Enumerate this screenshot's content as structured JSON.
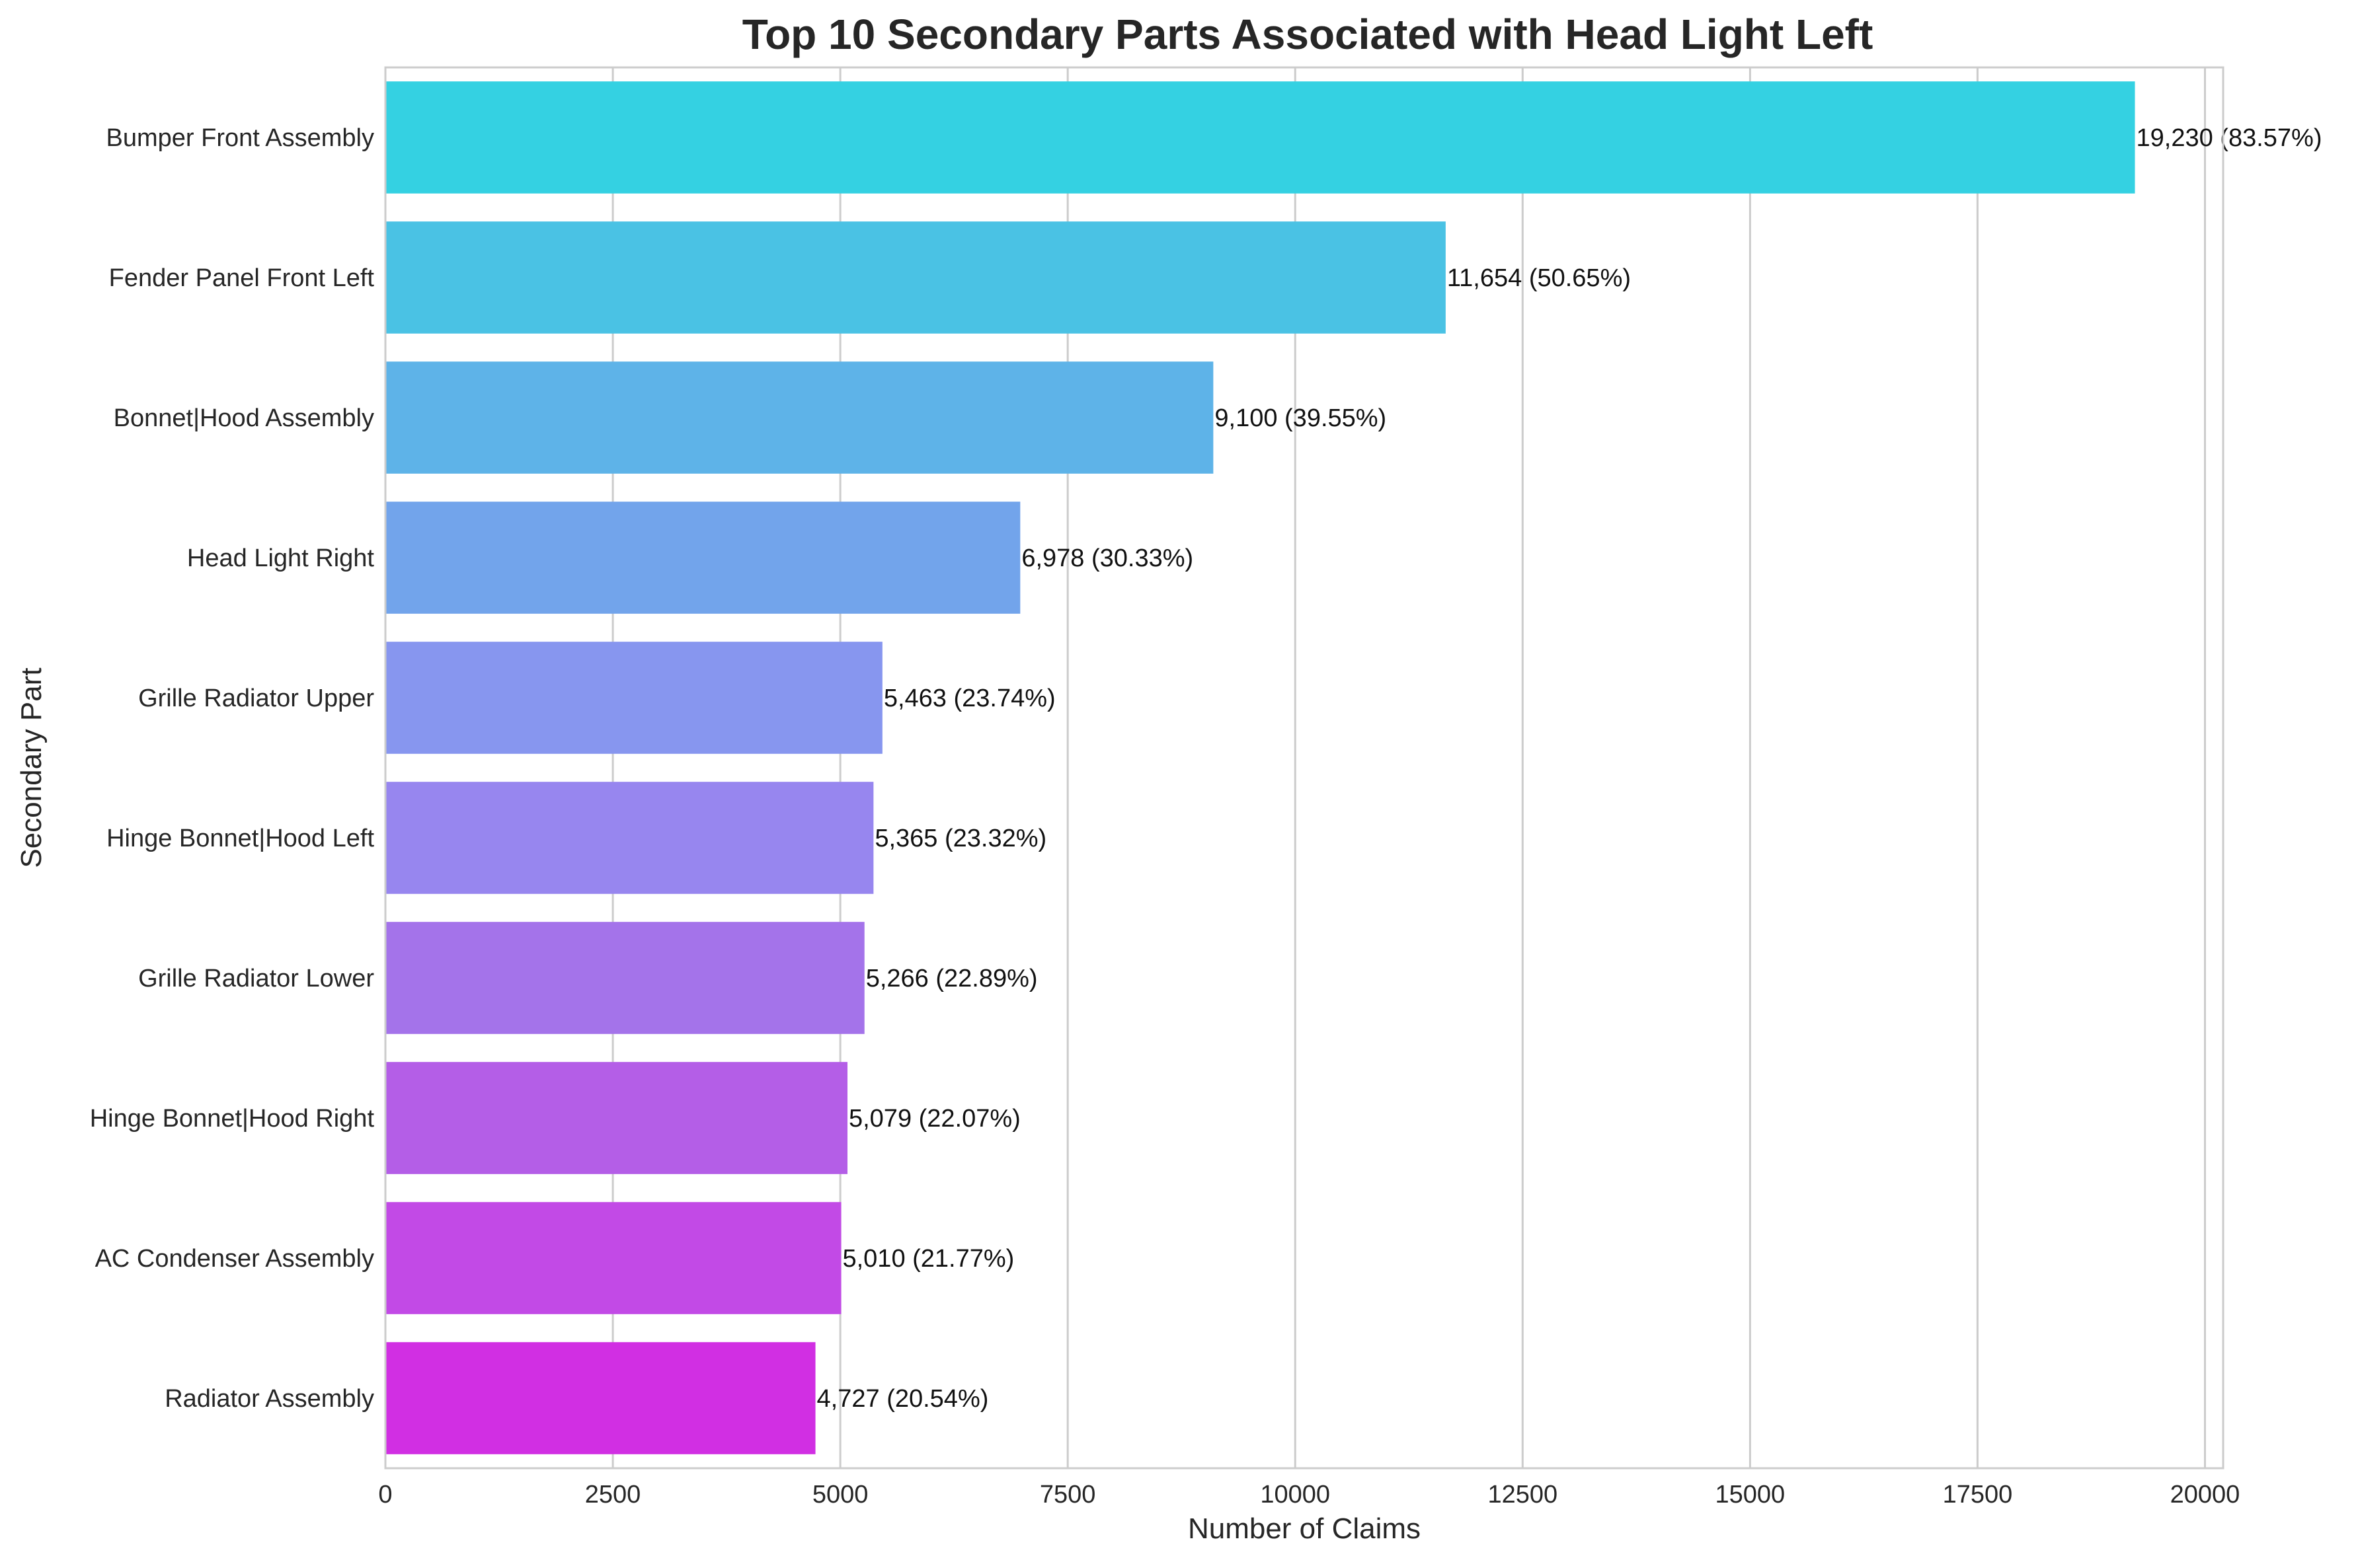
{
  "chart_data": {
    "type": "bar",
    "orientation": "horizontal",
    "title": "Top 10 Secondary Parts Associated with Head Light Left",
    "xlabel": "Number of Claims",
    "ylabel": "Secondary Part",
    "xlim": [
      0,
      20200
    ],
    "xticks": [
      0,
      2500,
      5000,
      7500,
      10000,
      12500,
      15000,
      17500,
      20000
    ],
    "grid": true,
    "categories": [
      "Bumper Front Assembly",
      "Fender Panel Front Left",
      "Bonnet|Hood Assembly",
      "Head Light Right",
      "Grille Radiator Upper",
      "Hinge Bonnet|Hood Left",
      "Grille Radiator Lower",
      "Hinge Bonnet|Hood Right",
      "AC Condenser Assembly",
      "Radiator Assembly"
    ],
    "values": [
      19230,
      11654,
      9100,
      6978,
      5463,
      5365,
      5266,
      5079,
      5010,
      4727
    ],
    "data_labels": [
      "19,230 (83.57%)",
      "11,654 (50.65%)",
      "9,100 (39.55%)",
      "6,978 (30.33%)",
      "5,463 (23.74%)",
      "5,365 (23.32%)",
      "5,266 (22.89%)",
      "5,079 (22.07%)",
      "5,010 (21.77%)",
      "4,727 (20.54%)"
    ],
    "colors": [
      "#34d1e2",
      "#4ac2e4",
      "#5eb3e8",
      "#72a4eb",
      "#8796ef",
      "#9786ef",
      "#a473ea",
      "#b45ee7",
      "#c24ae6",
      "#d12fe3"
    ]
  }
}
